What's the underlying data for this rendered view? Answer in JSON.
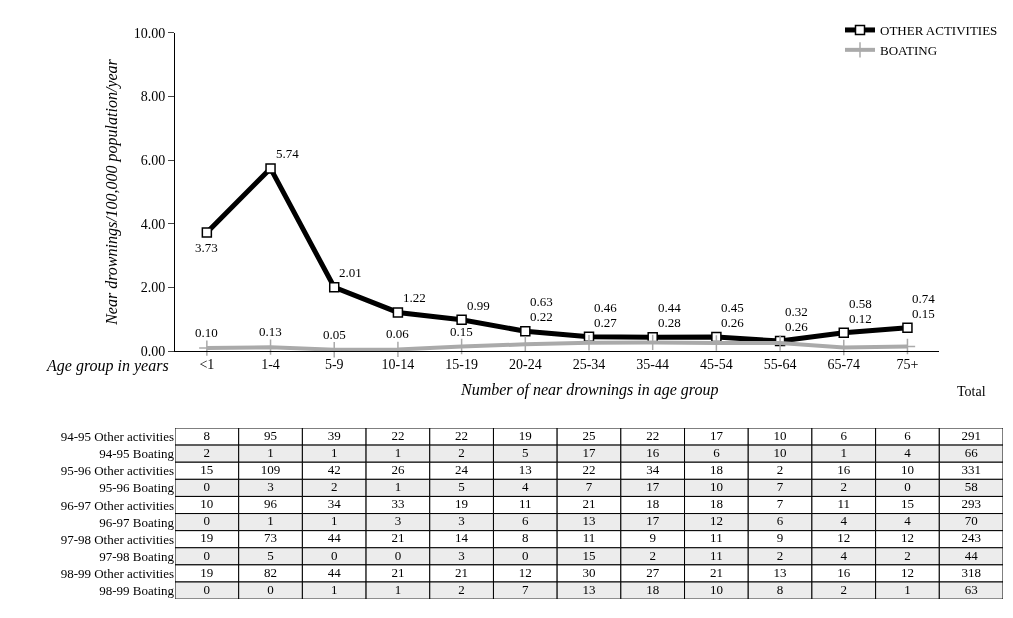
{
  "chart_data": [
    {
      "type": "line",
      "xlabel": "Age group in years",
      "ylabel": "Near drownings/100,000 population/year",
      "categories": [
        "<1",
        "1-4",
        "5-9",
        "10-14",
        "15-19",
        "20-24",
        "25-34",
        "35-44",
        "45-54",
        "55-64",
        "65-74",
        "75+"
      ],
      "series": [
        {
          "name": "OTHER ACTIVITIES",
          "color": "#000000",
          "marker": "square",
          "values": [
            3.73,
            5.74,
            2.01,
            1.22,
            0.99,
            0.63,
            0.46,
            0.44,
            0.45,
            0.32,
            0.58,
            0.74
          ],
          "value_labels": [
            "3.73",
            "5.74",
            "2.01",
            "1.22",
            "0.99",
            "0.63",
            "0.46",
            "0.44",
            "0.45",
            "0.32",
            "0.58",
            "0.74"
          ]
        },
        {
          "name": "BOATING",
          "color": "#aaaaaa",
          "marker": "cross",
          "values": [
            0.1,
            0.13,
            0.05,
            0.06,
            0.15,
            0.22,
            0.27,
            0.28,
            0.26,
            0.26,
            0.12,
            0.15
          ],
          "value_labels": [
            "0.10",
            "0.13",
            "0.05",
            "0.06",
            "0.15",
            "0.22",
            "0.27",
            "0.28",
            "0.26",
            "0.26",
            "0.12",
            "0.15"
          ]
        }
      ],
      "ylim": [
        0,
        10
      ],
      "yticks": [
        {
          "value": 0,
          "label": "0.00"
        },
        {
          "value": 2,
          "label": "2.00"
        },
        {
          "value": 4,
          "label": "4.00"
        },
        {
          "value": 6,
          "label": "6.00"
        },
        {
          "value": 8,
          "label": "8.00"
        },
        {
          "value": 10,
          "label": "10.00"
        }
      ],
      "legend": "top right",
      "grid": false,
      "line_style": "solid"
    },
    {
      "type": "heatmap",
      "title": "Number of near drownings in age group",
      "categories": [
        null,
        null,
        null,
        null,
        null,
        null,
        null,
        null,
        null,
        null,
        null,
        null,
        null
      ],
      "annotations": [
        "Total"
      ],
      "tick_labels": "y",
      "data_labels": true,
      "y_categories": [
        "94-95 Other activities",
        "94-95 Boating",
        "95-96 Other activities",
        "95-96 Boating",
        "96-97 Other activities",
        "96-97 Boating",
        "97-98 Other activities",
        "97-98 Boating",
        "98-99 Other activities",
        "98-99 Boating"
      ],
      "cells": [
        [
          8,
          95,
          39,
          22,
          22,
          19,
          25,
          22,
          17,
          10,
          6,
          6,
          291
        ],
        [
          2,
          1,
          1,
          1,
          2,
          5,
          17,
          16,
          6,
          10,
          1,
          4,
          66
        ],
        [
          15,
          109,
          42,
          26,
          24,
          13,
          22,
          34,
          18,
          2,
          16,
          10,
          331
        ],
        [
          0,
          3,
          2,
          1,
          5,
          4,
          7,
          17,
          10,
          7,
          2,
          0,
          58
        ],
        [
          10,
          96,
          34,
          33,
          19,
          11,
          21,
          18,
          18,
          7,
          11,
          15,
          293
        ],
        [
          0,
          1,
          1,
          3,
          3,
          6,
          13,
          17,
          12,
          6,
          4,
          4,
          70
        ],
        [
          19,
          73,
          44,
          21,
          14,
          8,
          11,
          9,
          11,
          9,
          12,
          12,
          243
        ],
        [
          0,
          5,
          0,
          0,
          3,
          0,
          15,
          2,
          11,
          2,
          4,
          2,
          44
        ],
        [
          19,
          82,
          44,
          21,
          21,
          12,
          30,
          27,
          21,
          13,
          16,
          12,
          318
        ],
        [
          0,
          0,
          1,
          1,
          2,
          7,
          13,
          18,
          10,
          8,
          2,
          1,
          63
        ]
      ]
    }
  ]
}
